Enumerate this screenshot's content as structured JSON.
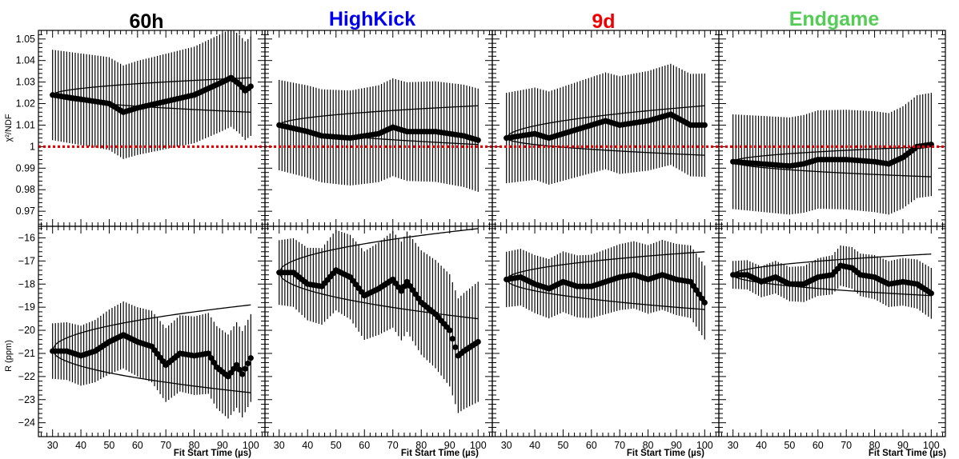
{
  "chart_data": {
    "type": "scatter",
    "layout": "2 rows x 4 columns",
    "columns": [
      {
        "title": "60h",
        "color": "#000000"
      },
      {
        "title": "HighKick",
        "color": "#0000ee"
      },
      {
        "title": "9d",
        "color": "#ee0000"
      },
      {
        "title": "Endgame",
        "color": "#55cc55"
      }
    ],
    "xlabel": "Fit Start Time (µs)",
    "xlim": [
      25,
      105
    ],
    "xticks": [
      30,
      40,
      50,
      60,
      70,
      80,
      90,
      100
    ],
    "reference_line": {
      "row": "chi2",
      "y": 1.0,
      "color": "#ee0000",
      "style": "dotted"
    },
    "rows": [
      {
        "id": "chi2",
        "ylabel": "χ²/NDF",
        "ylim": [
          0.963,
          1.054
        ],
        "yticks": [
          0.97,
          0.98,
          0.99,
          1,
          1.01,
          1.02,
          1.03,
          1.04,
          1.05
        ],
        "ytick_labels": [
          "0.97",
          "0.98",
          "0.99",
          "1",
          "1.01",
          "1.02",
          "1.03",
          "1.04",
          "1.05"
        ]
      },
      {
        "id": "R",
        "ylabel": "R (ppm)",
        "ylim": [
          -24.6,
          -15.5
        ],
        "yticks": [
          -24,
          -23,
          -22,
          -21,
          -20,
          -19,
          -18,
          -17,
          -16
        ],
        "ytick_labels": [
          "−24",
          "−23",
          "−22",
          "−21",
          "−20",
          "−19",
          "−18",
          "−17",
          "−16"
        ]
      }
    ],
    "panels": [
      {
        "row": "chi2",
        "col": 0,
        "keys": [
          [
            30,
            1.024
          ],
          [
            40,
            1.022
          ],
          [
            50,
            1.02
          ],
          [
            55,
            1.016
          ],
          [
            60,
            1.018
          ],
          [
            70,
            1.021
          ],
          [
            80,
            1.024
          ],
          [
            90,
            1.03
          ],
          [
            93,
            1.032
          ],
          [
            96,
            1.029
          ],
          [
            98,
            1.026
          ],
          [
            100,
            1.028
          ]
        ],
        "err": [
          [
            30,
            0.021
          ],
          [
            100,
            0.023
          ]
        ],
        "band_start": 1.024,
        "band_end": [
          1.016,
          1.032
        ]
      },
      {
        "row": "chi2",
        "col": 1,
        "keys": [
          [
            30,
            1.01
          ],
          [
            40,
            1.007
          ],
          [
            45,
            1.005
          ],
          [
            55,
            1.004
          ],
          [
            65,
            1.006
          ],
          [
            70,
            1.009
          ],
          [
            75,
            1.007
          ],
          [
            85,
            1.007
          ],
          [
            90,
            1.006
          ],
          [
            95,
            1.005
          ],
          [
            100,
            1.003
          ]
        ],
        "err": [
          [
            30,
            0.021
          ],
          [
            100,
            0.024
          ]
        ],
        "band_start": 1.01,
        "band_end": [
          1.001,
          1.019
        ]
      },
      {
        "row": "chi2",
        "col": 2,
        "keys": [
          [
            30,
            1.004
          ],
          [
            40,
            1.006
          ],
          [
            45,
            1.004
          ],
          [
            55,
            1.008
          ],
          [
            65,
            1.012
          ],
          [
            70,
            1.01
          ],
          [
            80,
            1.012
          ],
          [
            88,
            1.015
          ],
          [
            95,
            1.01
          ],
          [
            100,
            1.01
          ]
        ],
        "err": [
          [
            30,
            0.021
          ],
          [
            100,
            0.024
          ]
        ],
        "band_start": 1.004,
        "band_end": [
          0.996,
          1.019
        ]
      },
      {
        "row": "chi2",
        "col": 3,
        "keys": [
          [
            30,
            0.993
          ],
          [
            40,
            0.992
          ],
          [
            50,
            0.991
          ],
          [
            55,
            0.992
          ],
          [
            60,
            0.994
          ],
          [
            70,
            0.994
          ],
          [
            80,
            0.993
          ],
          [
            85,
            0.992
          ],
          [
            90,
            0.995
          ],
          [
            95,
            1.0
          ],
          [
            100,
            1.001
          ]
        ],
        "err": [
          [
            30,
            0.022
          ],
          [
            100,
            0.024
          ]
        ],
        "band_start": 0.993,
        "band_end": [
          0.986,
          1.0
        ]
      },
      {
        "row": "R",
        "col": 0,
        "keys": [
          [
            30,
            -20.9
          ],
          [
            35,
            -20.9
          ],
          [
            40,
            -21.1
          ],
          [
            45,
            -20.9
          ],
          [
            50,
            -20.5
          ],
          [
            55,
            -20.2
          ],
          [
            60,
            -20.5
          ],
          [
            65,
            -20.7
          ],
          [
            70,
            -21.5
          ],
          [
            75,
            -21.0
          ],
          [
            80,
            -21.1
          ],
          [
            85,
            -21.0
          ],
          [
            88,
            -21.6
          ],
          [
            92,
            -22.0
          ],
          [
            95,
            -21.5
          ],
          [
            97,
            -21.9
          ],
          [
            100,
            -21.2
          ]
        ],
        "err": [
          [
            30,
            1.2
          ],
          [
            100,
            1.9
          ]
        ],
        "band_start": -20.85,
        "band_end": [
          -22.7,
          -18.9
        ]
      },
      {
        "row": "R",
        "col": 1,
        "keys": [
          [
            30,
            -17.5
          ],
          [
            35,
            -17.5
          ],
          [
            40,
            -18.0
          ],
          [
            45,
            -18.1
          ],
          [
            50,
            -17.4
          ],
          [
            55,
            -17.7
          ],
          [
            60,
            -18.5
          ],
          [
            65,
            -18.2
          ],
          [
            70,
            -17.8
          ],
          [
            73,
            -18.3
          ],
          [
            75,
            -17.9
          ],
          [
            80,
            -18.8
          ],
          [
            85,
            -19.3
          ],
          [
            90,
            -20.0
          ],
          [
            93,
            -21.1
          ],
          [
            95,
            -20.9
          ],
          [
            100,
            -20.5
          ]
        ],
        "err": [
          [
            30,
            1.4
          ],
          [
            100,
            2.6
          ]
        ],
        "band_start": -17.5,
        "band_end": [
          -19.5,
          -15.6
        ]
      },
      {
        "row": "R",
        "col": 2,
        "keys": [
          [
            30,
            -17.8
          ],
          [
            35,
            -17.7
          ],
          [
            40,
            -18.0
          ],
          [
            45,
            -18.2
          ],
          [
            50,
            -17.9
          ],
          [
            55,
            -18.1
          ],
          [
            60,
            -18.1
          ],
          [
            65,
            -17.9
          ],
          [
            70,
            -17.7
          ],
          [
            75,
            -17.6
          ],
          [
            80,
            -17.8
          ],
          [
            85,
            -17.6
          ],
          [
            90,
            -17.8
          ],
          [
            95,
            -17.9
          ],
          [
            100,
            -18.8
          ]
        ],
        "err": [
          [
            30,
            1.2
          ],
          [
            100,
            1.6
          ]
        ],
        "band_start": -17.8,
        "band_end": [
          -19.1,
          -16.6
        ]
      },
      {
        "row": "R",
        "col": 3,
        "keys": [
          [
            30,
            -17.6
          ],
          [
            35,
            -17.6
          ],
          [
            40,
            -17.9
          ],
          [
            45,
            -17.7
          ],
          [
            50,
            -18.0
          ],
          [
            55,
            -18.0
          ],
          [
            60,
            -17.7
          ],
          [
            65,
            -17.6
          ],
          [
            68,
            -17.2
          ],
          [
            72,
            -17.3
          ],
          [
            75,
            -17.6
          ],
          [
            80,
            -17.7
          ],
          [
            85,
            -18.0
          ],
          [
            90,
            -17.9
          ],
          [
            95,
            -18.0
          ],
          [
            100,
            -18.4
          ]
        ],
        "err": [
          [
            30,
            0.6
          ],
          [
            100,
            1.1
          ]
        ],
        "band_start": -17.6,
        "band_end": [
          -18.5,
          -16.7
        ]
      }
    ]
  }
}
